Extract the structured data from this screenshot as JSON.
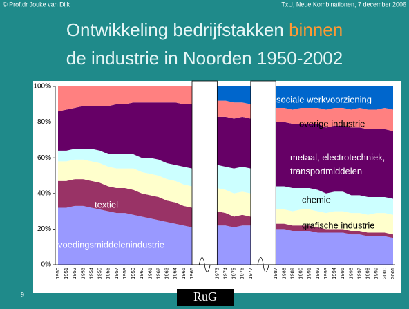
{
  "header": {
    "left": "© Prof.dr Jouke van Dijk",
    "right": "TxU, Neue Kombinationen, 7 december 2006"
  },
  "title": {
    "line1": "Ontwikkeling bedrijfstakken",
    "highlight": "binnen",
    "line2": "de industrie in Noorden 1950-2002"
  },
  "footer": {
    "page": "9",
    "logo": "RuG"
  },
  "chart_data": {
    "type": "stacked-area",
    "categories": [
      "1950",
      "1951",
      "1952",
      "1953",
      "1954",
      "1955",
      "1956",
      "1957",
      "1958",
      "1959",
      "1960",
      "1961",
      "1962",
      "1963",
      "1964",
      "1965",
      "1966",
      null,
      null,
      "1973",
      "1974",
      "1975",
      "1976",
      "1977",
      null,
      null,
      "1987",
      "1988",
      "1989",
      "1990",
      "1991",
      "1992",
      "1993",
      "1994",
      "1995",
      "1996",
      "1997",
      "1998",
      "1999",
      "2000",
      "2001"
    ],
    "ylim": [
      0,
      100
    ],
    "yticks": [
      {
        "value": 0,
        "label": "0%"
      },
      {
        "value": 20,
        "label": "20%"
      },
      {
        "value": 40,
        "label": "40%"
      },
      {
        "value": 60,
        "label": "60%"
      },
      {
        "value": 80,
        "label": "80%"
      },
      {
        "value": 100,
        "label": "100%"
      }
    ],
    "series": [
      {
        "name": "voedingsmiddelenindustrie",
        "color": "#9999ff",
        "values": [
          32,
          32,
          33,
          33,
          32,
          31,
          30,
          29,
          29,
          28,
          27,
          26,
          25,
          24,
          23,
          22,
          21,
          null,
          null,
          22,
          22,
          21,
          22,
          22,
          null,
          null,
          20,
          20,
          19,
          19,
          19,
          18,
          18,
          18,
          18,
          17,
          17,
          16,
          16,
          16,
          15
        ]
      },
      {
        "name": "textiel",
        "color": "#993366",
        "values": [
          15,
          15,
          15,
          15,
          15,
          15,
          14,
          14,
          14,
          14,
          13,
          13,
          13,
          12,
          12,
          11,
          11,
          null,
          null,
          8,
          7,
          6,
          6,
          5,
          null,
          null,
          3,
          3,
          3,
          3,
          3,
          3,
          2,
          2,
          2,
          2,
          2,
          2,
          2,
          2,
          2
        ]
      },
      {
        "name": "grafische industrie",
        "color": "#ffffcc",
        "values": [
          11,
          11,
          11,
          11,
          11,
          11,
          11,
          11,
          11,
          12,
          12,
          12,
          12,
          12,
          12,
          12,
          12,
          null,
          null,
          13,
          13,
          13,
          13,
          13,
          null,
          null,
          8,
          8,
          8,
          9,
          9,
          9,
          9,
          10,
          10,
          10,
          10,
          10,
          11,
          11,
          11
        ]
      },
      {
        "name": "chemie",
        "color": "#ccffff",
        "values": [
          6,
          6,
          6,
          6,
          7,
          7,
          7,
          8,
          8,
          8,
          8,
          9,
          9,
          9,
          9,
          10,
          10,
          null,
          null,
          13,
          13,
          14,
          14,
          14,
          null,
          null,
          13,
          13,
          13,
          12,
          12,
          12,
          11,
          11,
          11,
          10,
          10,
          10,
          9,
          9,
          9
        ]
      },
      {
        "name": "metaal, electrotechniek, transportmiddelen",
        "color": "#660066",
        "values": [
          22,
          23,
          23,
          24,
          24,
          25,
          27,
          28,
          28,
          29,
          31,
          31,
          32,
          34,
          35,
          35,
          36,
          null,
          null,
          27,
          28,
          28,
          28,
          28,
          null,
          null,
          36,
          36,
          36,
          36,
          36,
          37,
          37,
          37,
          37,
          38,
          38,
          38,
          38,
          38,
          38
        ]
      },
      {
        "name": "overige industrie",
        "color": "#ff8080",
        "values": [
          14,
          13,
          12,
          11,
          11,
          11,
          11,
          10,
          10,
          9,
          9,
          9,
          9,
          9,
          9,
          10,
          10,
          null,
          null,
          9,
          9,
          9,
          8,
          8,
          null,
          null,
          8,
          8,
          8,
          9,
          9,
          9,
          10,
          10,
          10,
          10,
          11,
          11,
          11,
          12,
          12
        ]
      },
      {
        "name": "sociale werkvoorziening",
        "color": "#0066cc",
        "values": [
          0,
          0,
          0,
          0,
          0,
          0,
          0,
          0,
          0,
          0,
          0,
          0,
          0,
          0,
          0,
          0,
          0,
          null,
          null,
          8,
          8,
          9,
          9,
          10,
          null,
          null,
          12,
          12,
          13,
          12,
          12,
          12,
          13,
          12,
          12,
          13,
          12,
          13,
          13,
          12,
          13
        ]
      }
    ]
  }
}
